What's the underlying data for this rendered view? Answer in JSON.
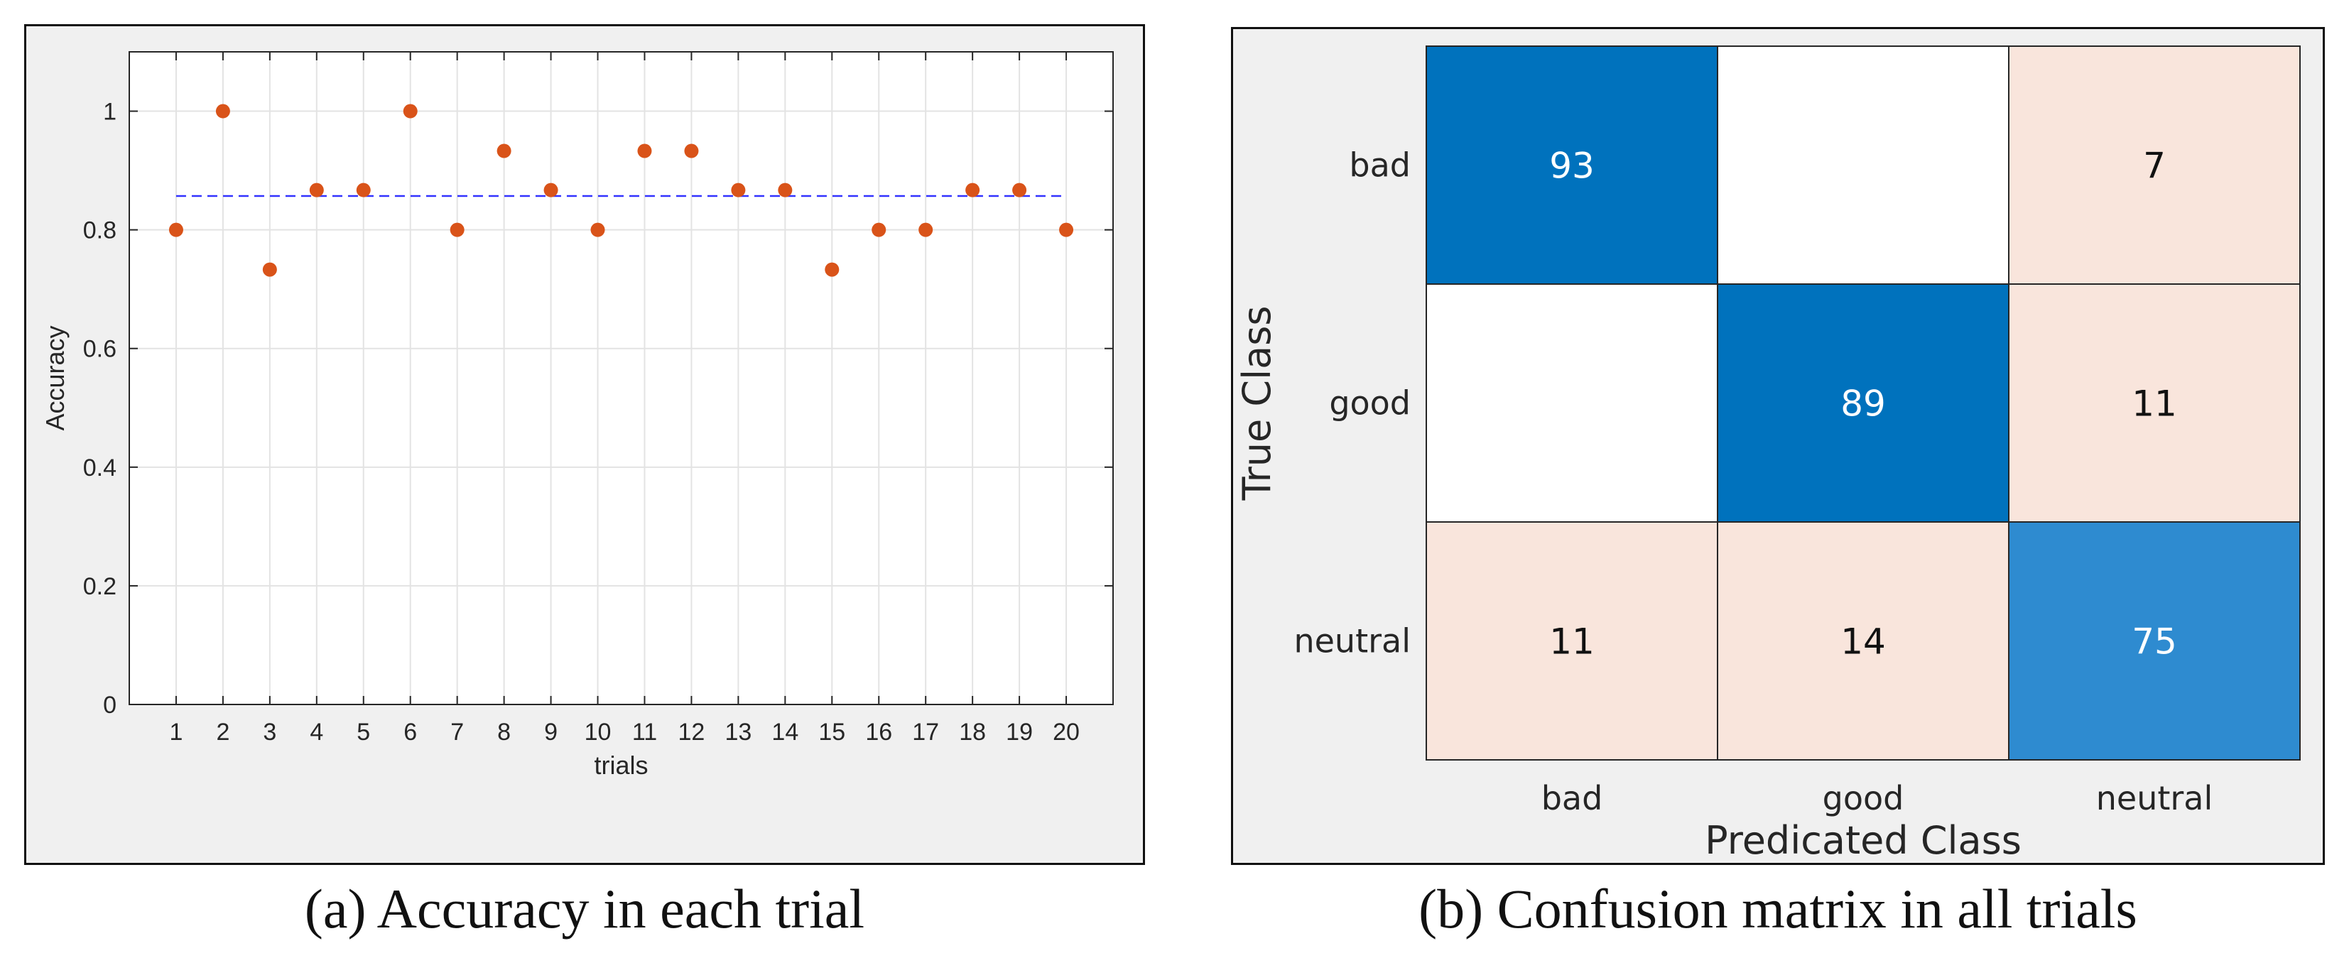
{
  "chart_data": [
    {
      "type": "scatter",
      "title": "",
      "xlabel": "trials",
      "ylabel": "Accuracy",
      "x": [
        1,
        2,
        3,
        4,
        5,
        6,
        7,
        8,
        9,
        10,
        11,
        12,
        13,
        14,
        15,
        16,
        17,
        18,
        19,
        20
      ],
      "xticks": [
        "1",
        "2",
        "3",
        "4",
        "5",
        "6",
        "7",
        "8",
        "9",
        "10",
        "11",
        "12",
        "13",
        "14",
        "15",
        "16",
        "17",
        "18",
        "19",
        "20"
      ],
      "series": [
        {
          "values": [
            0.8,
            1.0,
            0.733,
            0.867,
            0.867,
            1.0,
            0.8,
            0.933,
            0.867,
            0.8,
            0.933,
            0.933,
            0.867,
            0.867,
            0.733,
            0.8,
            0.8,
            0.867,
            0.867,
            0.8
          ],
          "color": "#d95319"
        }
      ],
      "reference_line": {
        "y": 0.857,
        "style": "dashed",
        "color": "#3333ff"
      },
      "xlim": [
        0,
        21
      ],
      "ylim": [
        0,
        1.1
      ],
      "yticks": [
        "0",
        "0.2",
        "0.4",
        "0.6",
        "0.8",
        "1"
      ],
      "grid": true
    },
    {
      "type": "heatmap",
      "title": "",
      "xlabel": "Predicated Class",
      "ylabel": "True Class",
      "rows": [
        "bad",
        "good",
        "neutral"
      ],
      "cols": [
        "bad",
        "good",
        "neutral"
      ],
      "values": [
        [
          93,
          null,
          7
        ],
        [
          null,
          89,
          11
        ],
        [
          11,
          14,
          75
        ]
      ],
      "colors": {
        "diagonal_strong": "#0072bd",
        "diagonal_light": "#2e8bd0",
        "off_diagonal": "#f9e5dc",
        "empty": "#ffffff"
      }
    }
  ],
  "captions": {
    "a": "(a) Accuracy in each trial",
    "b": "(b) Confusion matrix in all trials"
  }
}
